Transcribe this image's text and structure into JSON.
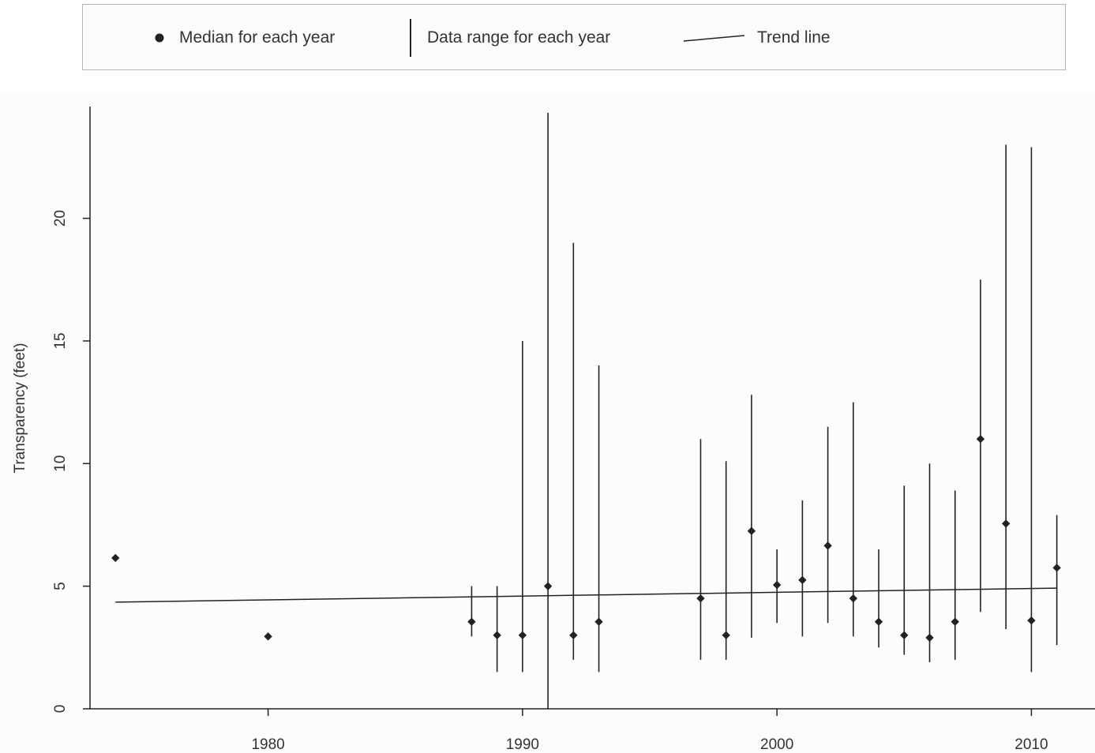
{
  "legend": {
    "median_label": "Median for each year",
    "range_label": "Data range for each year",
    "trend_label": "Trend line"
  },
  "chart_data": {
    "type": "scatter",
    "title": "",
    "xlabel": "",
    "ylabel": "Transparency (feet)",
    "xlim": [
      1973,
      2012.5
    ],
    "ylim": [
      0,
      24.3
    ],
    "x_ticks": [
      "1980",
      "1990",
      "2000",
      "2010"
    ],
    "y_ticks": [
      "0",
      "5",
      "10",
      "15",
      "20"
    ],
    "grid": false,
    "legend_position": "top",
    "series": [
      {
        "name": "Median for each year",
        "points": [
          {
            "year": 1974,
            "median": 6.15,
            "min": null,
            "max": null
          },
          {
            "year": 1980,
            "median": 2.95,
            "min": null,
            "max": null
          },
          {
            "year": 1988,
            "median": 3.55,
            "min": 2.95,
            "max": 5.0
          },
          {
            "year": 1989,
            "median": 3.0,
            "min": 1.5,
            "max": 5.0
          },
          {
            "year": 1990,
            "median": 3.0,
            "min": 1.5,
            "max": 15.0
          },
          {
            "year": 1991,
            "median": 5.0,
            "min": 0.0,
            "max": 24.3
          },
          {
            "year": 1992,
            "median": 3.0,
            "min": 2.0,
            "max": 19.0
          },
          {
            "year": 1993,
            "median": 3.55,
            "min": 1.5,
            "max": 14.0
          },
          {
            "year": 1997,
            "median": 4.5,
            "min": 2.0,
            "max": 11.0
          },
          {
            "year": 1998,
            "median": 3.0,
            "min": 2.0,
            "max": 10.1
          },
          {
            "year": 1999,
            "median": 7.25,
            "min": 2.9,
            "max": 12.8
          },
          {
            "year": 2000,
            "median": 5.05,
            "min": 3.5,
            "max": 6.5
          },
          {
            "year": 2001,
            "median": 5.25,
            "min": 2.95,
            "max": 8.5
          },
          {
            "year": 2002,
            "median": 6.65,
            "min": 3.5,
            "max": 11.5
          },
          {
            "year": 2003,
            "median": 4.5,
            "min": 2.95,
            "max": 12.5
          },
          {
            "year": 2004,
            "median": 3.55,
            "min": 2.5,
            "max": 6.5
          },
          {
            "year": 2005,
            "median": 3.0,
            "min": 2.2,
            "max": 9.1
          },
          {
            "year": 2006,
            "median": 2.9,
            "min": 1.9,
            "max": 10.0
          },
          {
            "year": 2007,
            "median": 3.55,
            "min": 2.0,
            "max": 8.9
          },
          {
            "year": 2008,
            "median": 11.0,
            "min": 3.95,
            "max": 17.5
          },
          {
            "year": 2009,
            "median": 7.55,
            "min": 3.25,
            "max": 23.0
          },
          {
            "year": 2010,
            "median": 3.6,
            "min": 1.5,
            "max": 22.9
          },
          {
            "year": 2011,
            "median": 5.75,
            "min": 2.6,
            "max": 7.9
          }
        ]
      },
      {
        "name": "Trend line",
        "x": [
          1974,
          2011
        ],
        "y": [
          4.35,
          4.92
        ]
      }
    ]
  }
}
